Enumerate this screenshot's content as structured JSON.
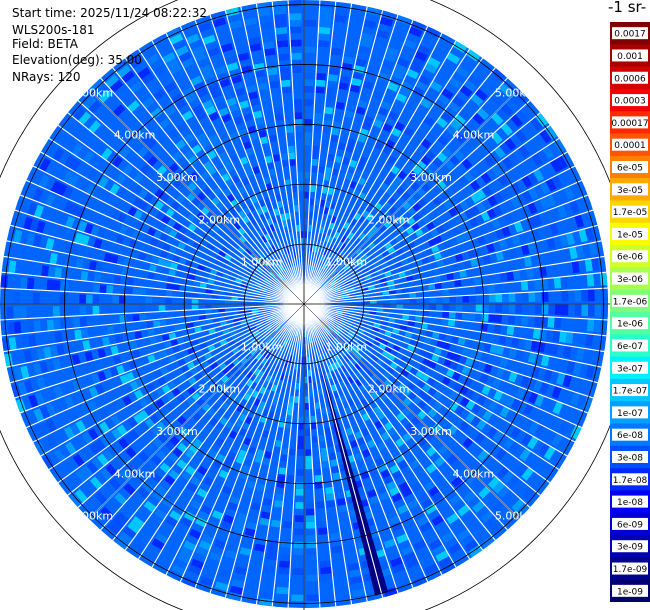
{
  "header": {
    "start_time": "Start time: 2025/11/24 08:22:32",
    "instrument": "WLS200s-181",
    "field": "Field: BETA",
    "elevation": "Elevation(deg): 35.00",
    "nrays": "NRays: 120"
  },
  "colorbar": {
    "title": "-1 sr-",
    "ticks": [
      "0.0017",
      "0.001",
      "0.0006",
      "0.0003",
      "0.00017",
      "0.0001",
      "6e-05",
      "3e-05",
      "1.7e-05",
      "1e-05",
      "6e-06",
      "3e-06",
      "1.7e-06",
      "1e-06",
      "6e-07",
      "3e-07",
      "1.7e-07",
      "1e-07",
      "6e-08",
      "3e-08",
      "1.7e-08",
      "1e-08",
      "6e-09",
      "3e-09",
      "1.7e-09",
      "1e-09"
    ],
    "colors": [
      "#800000",
      "#a60000",
      "#d40000",
      "#f50000",
      "#ff2a00",
      "#ff5500",
      "#ff7f00",
      "#ffaa00",
      "#ffd400",
      "#fcfc00",
      "#d2ff24",
      "#a8ff4e",
      "#7eff78",
      "#54ffa2",
      "#2affcc",
      "#00f0ff",
      "#00c8ff",
      "#00a0ff",
      "#0078ff",
      "#0050ff",
      "#0028ff",
      "#0000f5",
      "#0000d4",
      "#0000b0",
      "#000090",
      "#000070"
    ]
  },
  "chart_data": {
    "type": "heatmap",
    "projection": "polar-ppi",
    "field": "BETA",
    "nrays": 120,
    "range_rings_km": [
      1,
      2,
      3,
      4,
      5
    ],
    "ring_labels": [
      "1.00km",
      "2.00km",
      "3.00km",
      "4.00km",
      "5.00km"
    ],
    "max_range_km": 5.0,
    "grid": true,
    "dominant_value_range": [
      3e-08,
      1e-07
    ],
    "blocked_sector_azimuth_deg": 165,
    "blocked_sector_value": 1e-09
  }
}
